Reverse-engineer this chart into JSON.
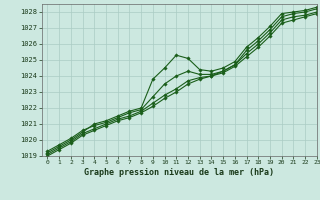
{
  "title": "Graphe pression niveau de la mer (hPa)",
  "xlim": [
    -0.5,
    23
  ],
  "ylim": [
    1019,
    1028.5
  ],
  "yticks": [
    1019,
    1020,
    1021,
    1022,
    1023,
    1024,
    1025,
    1026,
    1027,
    1028
  ],
  "xticks": [
    0,
    1,
    2,
    3,
    4,
    5,
    6,
    7,
    8,
    9,
    10,
    11,
    12,
    13,
    14,
    15,
    16,
    17,
    18,
    19,
    20,
    21,
    22,
    23
  ],
  "background_color": "#cce8e0",
  "grid_color": "#aaccC4",
  "line_color": "#1a5e1a",
  "series": [
    {
      "x": [
        0,
        1,
        2,
        3,
        4,
        5,
        6,
        7,
        8,
        9,
        10,
        11,
        12,
        13,
        14,
        15,
        16,
        17,
        18,
        19,
        20,
        21,
        22,
        23
      ],
      "y": [
        1019.2,
        1019.6,
        1020.0,
        1020.5,
        1021.0,
        1021.2,
        1021.5,
        1021.8,
        1022.0,
        1023.8,
        1024.5,
        1025.3,
        1025.1,
        1024.4,
        1024.3,
        1024.5,
        1024.9,
        1025.8,
        1026.4,
        1027.1,
        1027.9,
        1028.0,
        1028.1,
        1028.3
      ]
    },
    {
      "x": [
        0,
        1,
        2,
        3,
        4,
        5,
        6,
        7,
        8,
        9,
        10,
        11,
        12,
        13,
        14,
        15,
        16,
        17,
        18,
        19,
        20,
        21,
        22,
        23
      ],
      "y": [
        1019.3,
        1019.7,
        1020.1,
        1020.6,
        1020.9,
        1021.1,
        1021.4,
        1021.7,
        1021.9,
        1022.7,
        1023.5,
        1024.0,
        1024.3,
        1024.1,
        1024.1,
        1024.3,
        1024.7,
        1025.6,
        1026.2,
        1026.9,
        1027.7,
        1027.9,
        1028.0,
        1028.2
      ]
    },
    {
      "x": [
        0,
        1,
        2,
        3,
        4,
        5,
        6,
        7,
        8,
        9,
        10,
        11,
        12,
        13,
        14,
        15,
        16,
        17,
        18,
        19,
        20,
        21,
        22,
        23
      ],
      "y": [
        1019.1,
        1019.5,
        1019.9,
        1020.4,
        1020.7,
        1021.0,
        1021.3,
        1021.5,
        1021.8,
        1022.3,
        1022.8,
        1023.2,
        1023.7,
        1023.9,
        1024.0,
        1024.3,
        1024.7,
        1025.4,
        1026.0,
        1026.7,
        1027.5,
        1027.7,
        1027.8,
        1028.0
      ]
    },
    {
      "x": [
        0,
        1,
        2,
        3,
        4,
        5,
        6,
        7,
        8,
        9,
        10,
        11,
        12,
        13,
        14,
        15,
        16,
        17,
        18,
        19,
        20,
        21,
        22,
        23
      ],
      "y": [
        1019.0,
        1019.4,
        1019.8,
        1020.3,
        1020.6,
        1020.9,
        1021.2,
        1021.4,
        1021.7,
        1022.1,
        1022.6,
        1023.0,
        1023.5,
        1023.8,
        1024.0,
        1024.2,
        1024.6,
        1025.2,
        1025.8,
        1026.5,
        1027.3,
        1027.5,
        1027.7,
        1027.9
      ]
    }
  ]
}
